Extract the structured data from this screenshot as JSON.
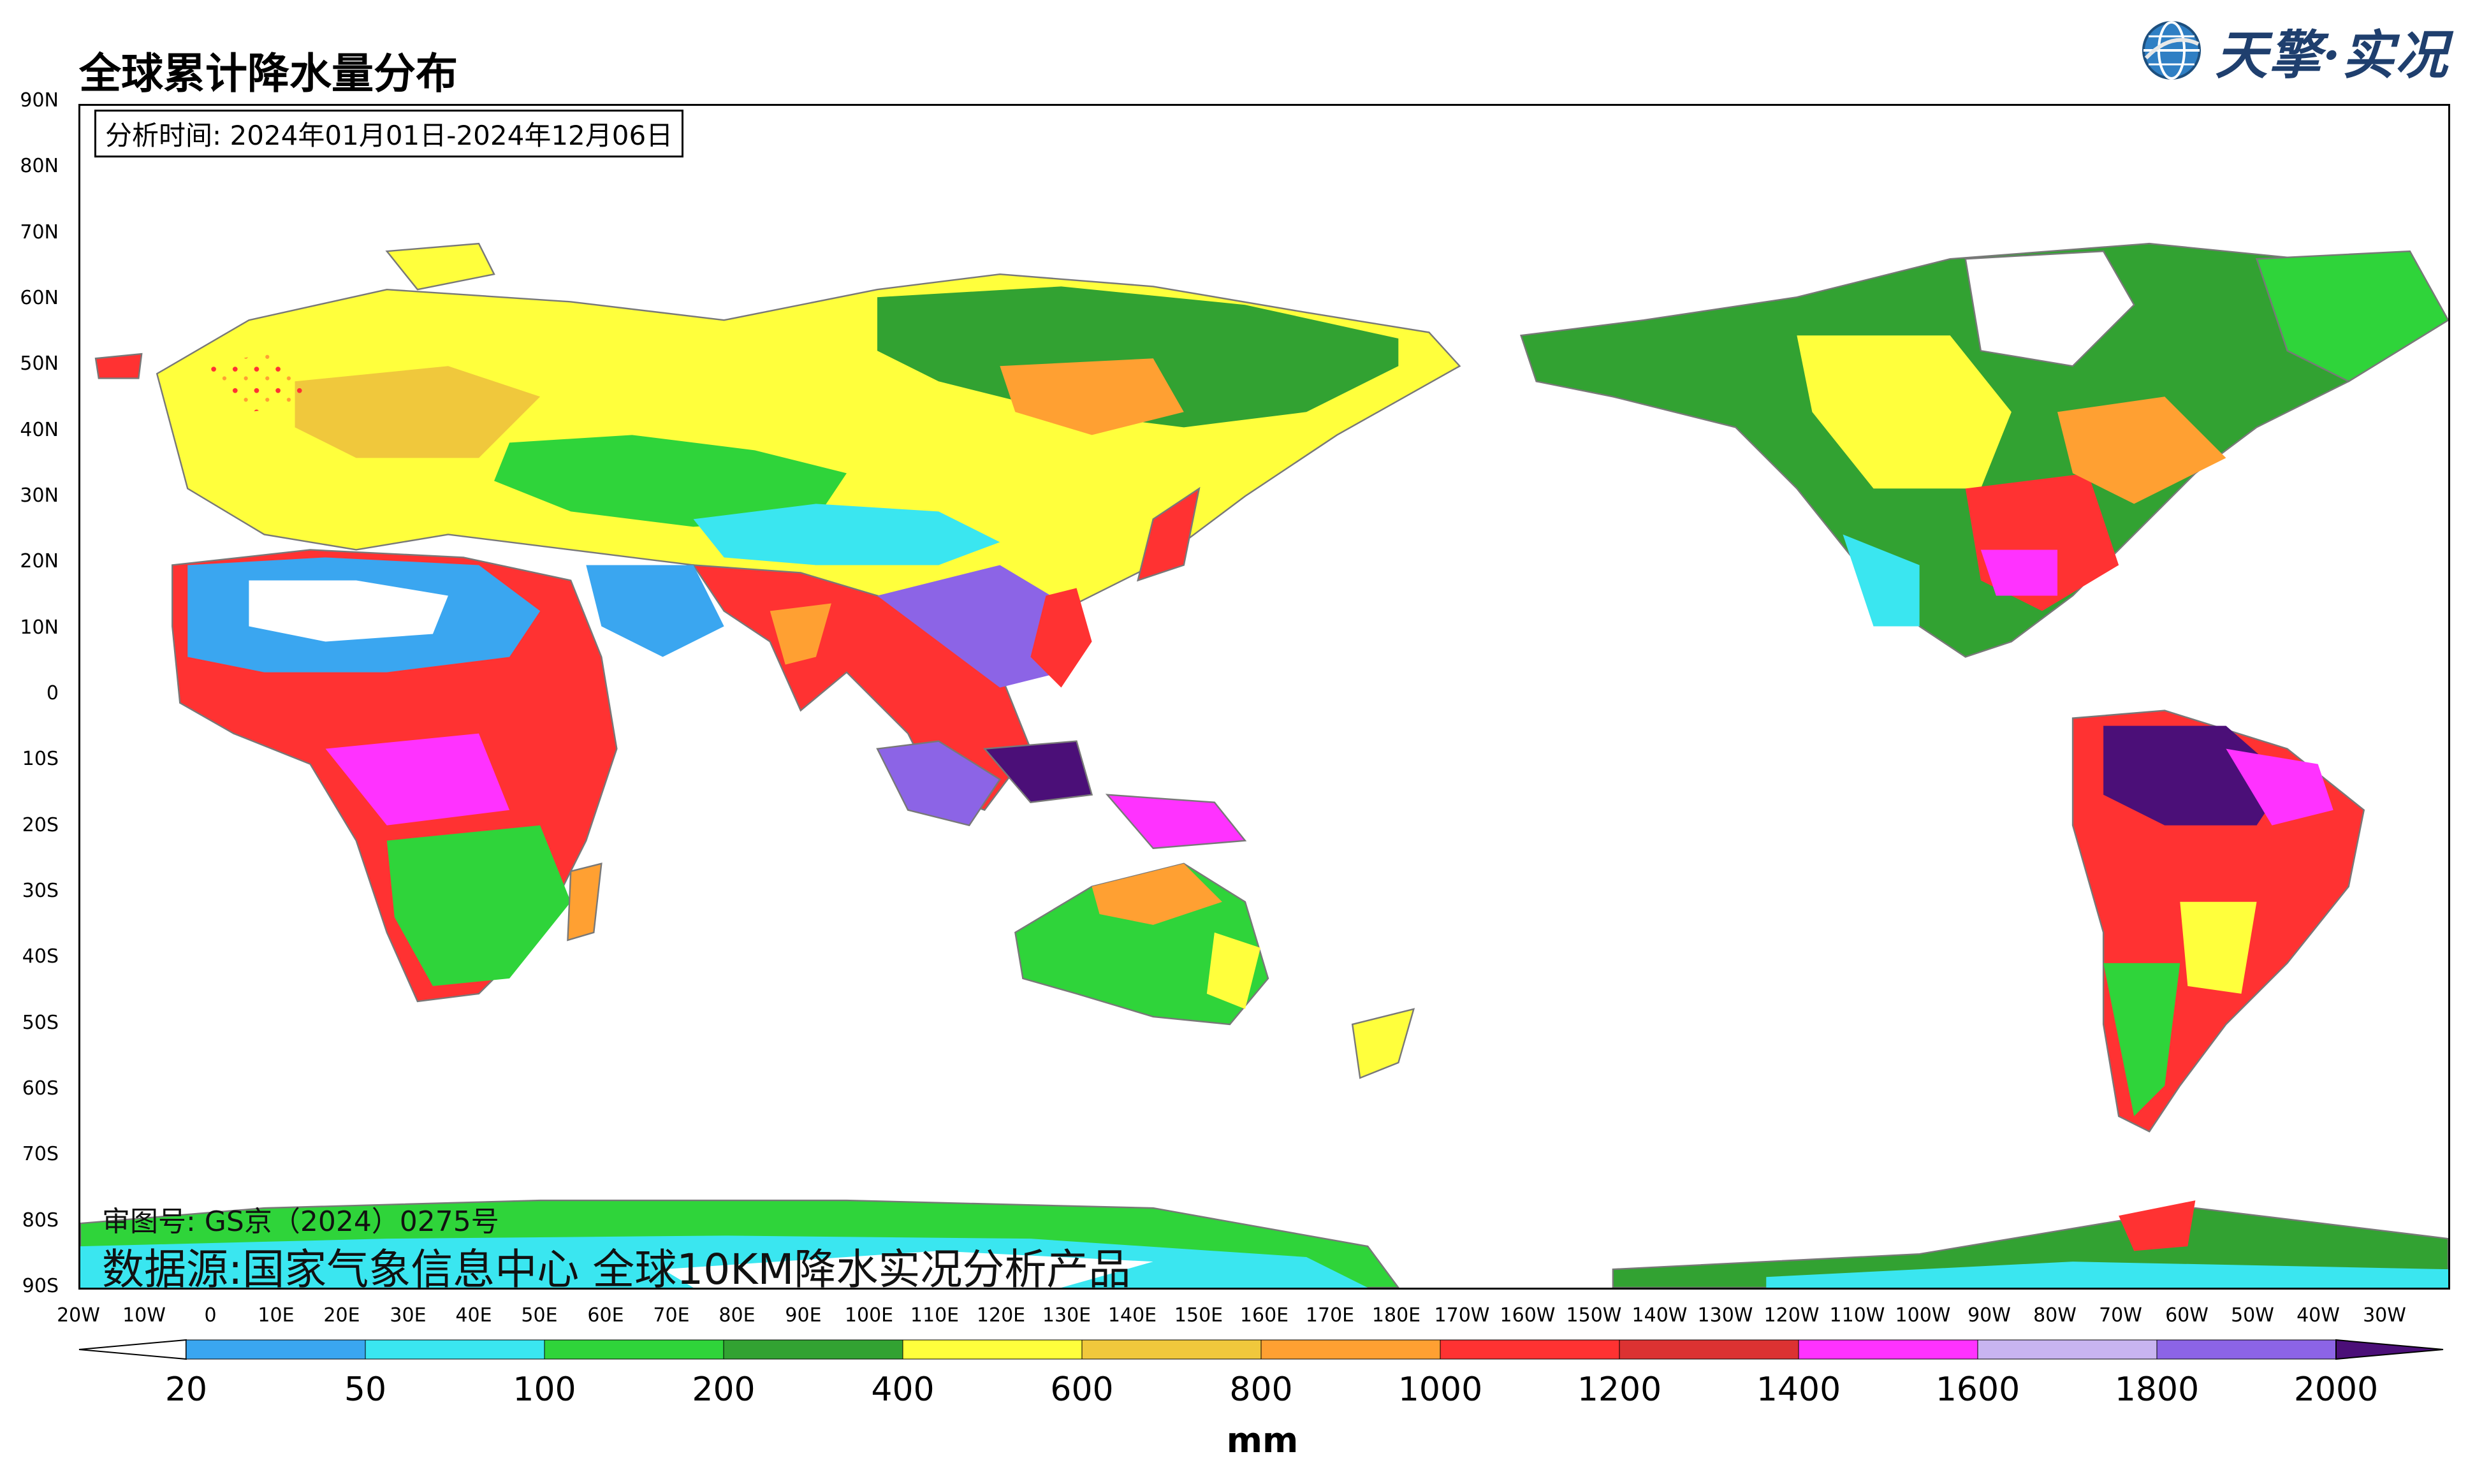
{
  "title": "全球累计降水量分布",
  "logo": {
    "text": "天擎·实况",
    "icon": "globe-logo-icon"
  },
  "analysis_time": "分析时间: 2024年01月01日-2024年12月06日",
  "review_number": "审图号: GS京（2024）0275号",
  "data_source": "数据源:国家气象信息中心 全球10KM降水实况分析产品",
  "lat_labels": [
    "90N",
    "80N",
    "70N",
    "60N",
    "50N",
    "40N",
    "30N",
    "20N",
    "10N",
    "0",
    "10S",
    "20S",
    "30S",
    "40S",
    "50S",
    "60S",
    "70S",
    "80S",
    "90S"
  ],
  "lon_labels": [
    "20W",
    "10W",
    "0",
    "10E",
    "20E",
    "30E",
    "40E",
    "50E",
    "60E",
    "70E",
    "80E",
    "90E",
    "100E",
    "110E",
    "120E",
    "130E",
    "140E",
    "150E",
    "160E",
    "170E",
    "180E",
    "170W",
    "160W",
    "150W",
    "140W",
    "130W",
    "120W",
    "110W",
    "100W",
    "90W",
    "80W",
    "70W",
    "60W",
    "50W",
    "40W",
    "30W"
  ],
  "colorbar": {
    "labels": [
      "20",
      "50",
      "100",
      "200",
      "400",
      "600",
      "800",
      "1000",
      "1200",
      "1400",
      "1600",
      "1800",
      "2000"
    ],
    "colors": [
      "#3aa6f0",
      "#3ae6f0",
      "#2fd43a",
      "#32a232",
      "#ffff3c",
      "#f0c83c",
      "#ffa032",
      "#ff3232",
      "#dc3232",
      "#ff32ff",
      "#c8b4f0",
      "#8c64e6"
    ],
    "under_color": "#ffffff",
    "over_color": "#4b0f78",
    "unit": "mm"
  },
  "map": {
    "type": "precipitation-accumulation",
    "projection": "equirectangular",
    "central_longitude": "160E",
    "lat_range": [
      "90S",
      "90N"
    ],
    "lon_range": [
      "20W",
      "30W"
    ],
    "ocean_color": "#ffffff",
    "land_outline_color": "#787878"
  }
}
